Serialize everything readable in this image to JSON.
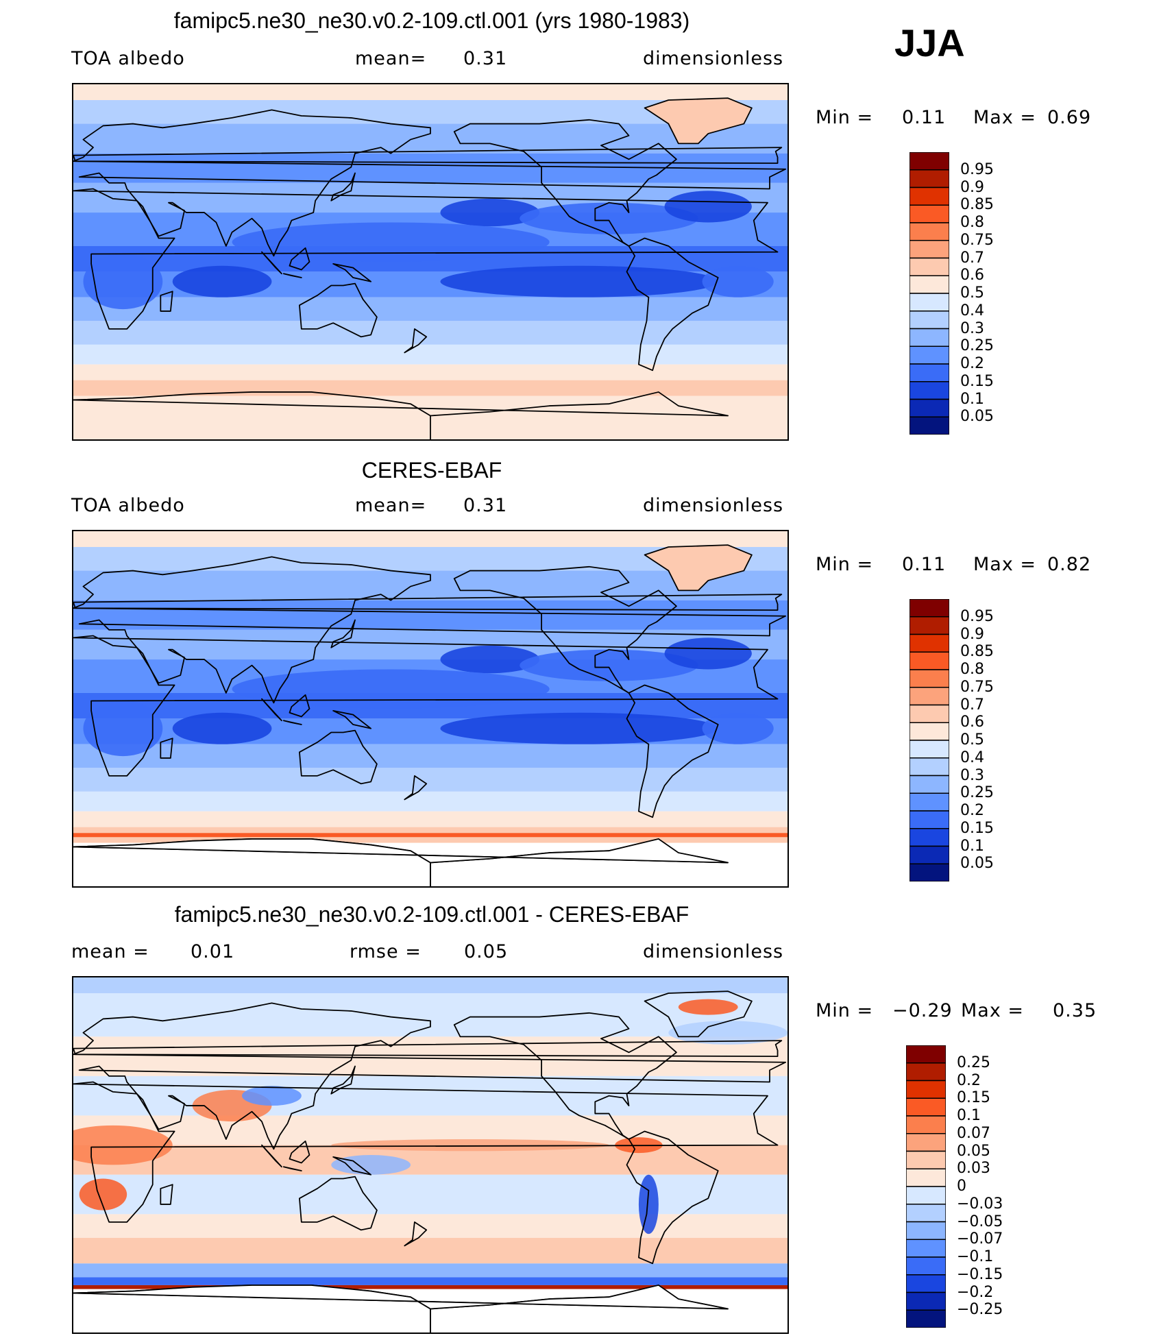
{
  "season": "JJA",
  "panels": [
    {
      "title": "famipc5.ne30_ne30.v0.2-109.ctl.001 (yrs 1980-1983)",
      "left_label": "TOA albedo",
      "mid_label": "mean=",
      "mid_value": "0.31",
      "right_label": "dimensionless",
      "minmax": {
        "min_label": "Min =",
        "min": "0.11",
        "max_label": "Max =",
        "max": "0.69"
      },
      "colorbar": {
        "labels": [
          "0.95",
          "0.9",
          "0.85",
          "0.8",
          "0.75",
          "0.7",
          "0.6",
          "0.5",
          "0.4",
          "0.3",
          "0.25",
          "0.2",
          "0.15",
          "0.1",
          "0.05"
        ],
        "colors": [
          "#7f0000",
          "#b01d00",
          "#e03200",
          "#fa5a25",
          "#fb7f4d",
          "#fca37c",
          "#fdcab0",
          "#fde8da",
          "#d7e8ff",
          "#b3d0ff",
          "#8db6ff",
          "#5f92ff",
          "#3a6cf7",
          "#1a46e0",
          "#0b29b5",
          "#03147e"
        ]
      },
      "map_scheme": "albedo_model"
    },
    {
      "title": "CERES-EBAF",
      "left_label": "TOA albedo",
      "mid_label": "mean=",
      "mid_value": "0.31",
      "right_label": "dimensionless",
      "minmax": {
        "min_label": "Min =",
        "min": "0.11",
        "max_label": "Max =",
        "max": "0.82"
      },
      "colorbar": {
        "labels": [
          "0.95",
          "0.9",
          "0.85",
          "0.8",
          "0.75",
          "0.7",
          "0.6",
          "0.5",
          "0.4",
          "0.3",
          "0.25",
          "0.2",
          "0.15",
          "0.1",
          "0.05"
        ],
        "colors": [
          "#7f0000",
          "#b01d00",
          "#e03200",
          "#fa5a25",
          "#fb7f4d",
          "#fca37c",
          "#fdcab0",
          "#fde8da",
          "#d7e8ff",
          "#b3d0ff",
          "#8db6ff",
          "#5f92ff",
          "#3a6cf7",
          "#1a46e0",
          "#0b29b5",
          "#03147e"
        ]
      },
      "map_scheme": "albedo_obs"
    },
    {
      "title": "famipc5.ne30_ne30.v0.2-109.ctl.001 - CERES-EBAF",
      "left_label": "mean =",
      "left_value": "0.01",
      "mid_label": "rmse =",
      "mid_value": "0.05",
      "right_label": "dimensionless",
      "minmax": {
        "min_label": "Min =",
        "min": "−0.29",
        "max_label": "Max =",
        "max": "0.35"
      },
      "colorbar": {
        "labels": [
          "0.25",
          "0.2",
          "0.15",
          "0.1",
          "0.07",
          "0.05",
          "0.03",
          "0",
          "−0.03",
          "−0.05",
          "−0.07",
          "−0.1",
          "−0.15",
          "−0.2",
          "−0.25"
        ],
        "colors": [
          "#7f0000",
          "#b01d00",
          "#e03200",
          "#fa5a25",
          "#fb7f4d",
          "#fca37c",
          "#fdcab0",
          "#fde8da",
          "#d7e8ff",
          "#b3d0ff",
          "#8db6ff",
          "#5f92ff",
          "#3a6cf7",
          "#1a46e0",
          "#0b29b5",
          "#03147e"
        ]
      },
      "map_scheme": "difference"
    }
  ]
}
